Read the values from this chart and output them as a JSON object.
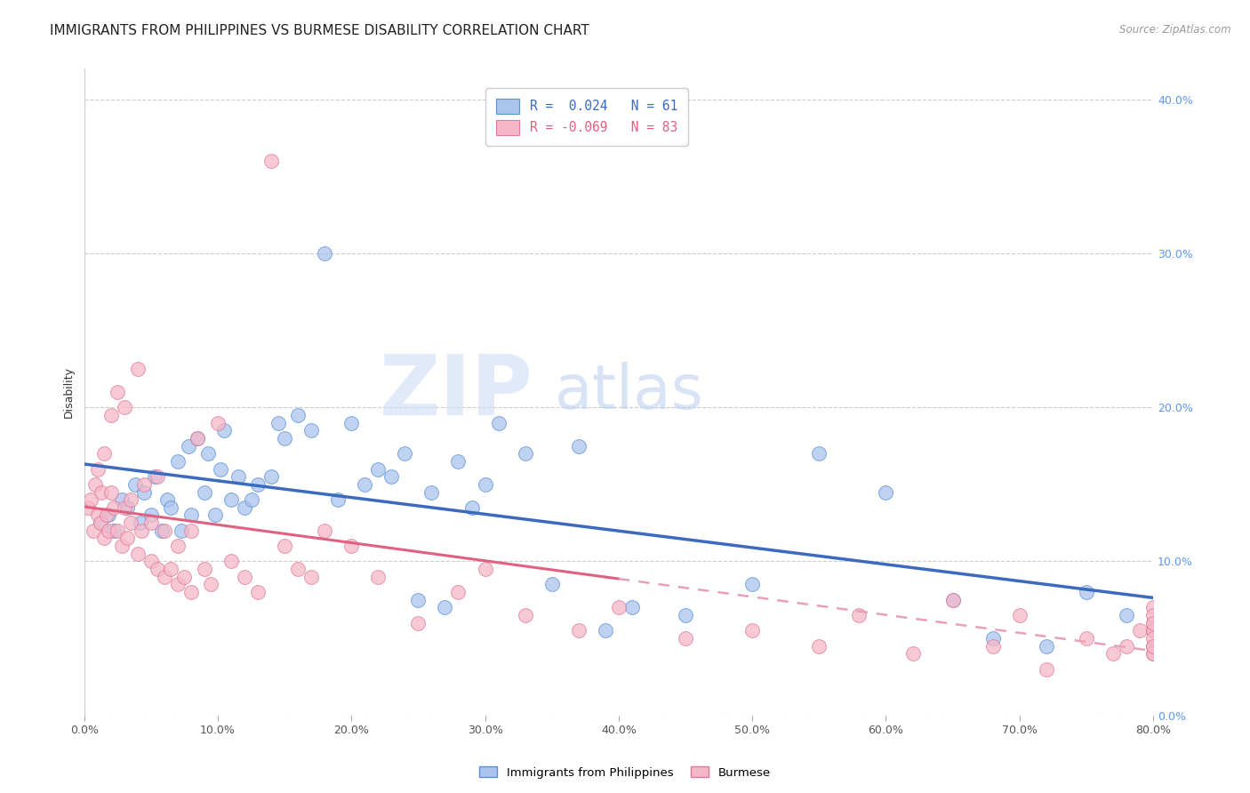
{
  "title": "IMMIGRANTS FROM PHILIPPINES VS BURMESE DISABILITY CORRELATION CHART",
  "source": "Source: ZipAtlas.com",
  "ylabel": "Disability",
  "watermark_zip": "ZIP",
  "watermark_atlas": "atlas",
  "xlim": [
    0.0,
    80.0
  ],
  "ylim": [
    0.0,
    42.0
  ],
  "yticks": [
    0.0,
    10.0,
    20.0,
    30.0,
    40.0
  ],
  "xticks": [
    0.0,
    10.0,
    20.0,
    30.0,
    40.0,
    50.0,
    60.0,
    70.0,
    80.0
  ],
  "legend1_label": "Immigrants from Philippines",
  "legend2_label": "Burmese",
  "r1": 0.024,
  "n1": 61,
  "r2": -0.069,
  "n2": 83,
  "blue_fill": "#aac4ed",
  "blue_edge": "#5b8fd4",
  "pink_fill": "#f5b8c8",
  "pink_edge": "#e07898",
  "blue_line_color": "#3a6bbf",
  "pink_line_color": "#e06080",
  "pink_dash_color": "#e8a0b8",
  "title_fontsize": 11,
  "axis_label_fontsize": 9,
  "tick_fontsize": 9,
  "blue_scatter": {
    "x": [
      1.2,
      1.8,
      2.2,
      2.8,
      3.2,
      3.8,
      4.2,
      4.5,
      5.0,
      5.3,
      5.8,
      6.2,
      6.5,
      7.0,
      7.3,
      7.8,
      8.0,
      8.5,
      9.0,
      9.3,
      9.8,
      10.2,
      10.5,
      11.0,
      11.5,
      12.0,
      12.5,
      13.0,
      14.0,
      14.5,
      15.0,
      16.0,
      17.0,
      18.0,
      19.0,
      20.0,
      21.0,
      22.0,
      23.0,
      24.0,
      25.0,
      26.0,
      27.0,
      28.0,
      29.0,
      30.0,
      31.0,
      33.0,
      35.0,
      37.0,
      39.0,
      41.0,
      45.0,
      50.0,
      55.0,
      60.0,
      65.0,
      68.0,
      72.0,
      75.0,
      78.0
    ],
    "y": [
      12.5,
      13.0,
      12.0,
      14.0,
      13.5,
      15.0,
      12.5,
      14.5,
      13.0,
      15.5,
      12.0,
      14.0,
      13.5,
      16.5,
      12.0,
      17.5,
      13.0,
      18.0,
      14.5,
      17.0,
      13.0,
      16.0,
      18.5,
      14.0,
      15.5,
      13.5,
      14.0,
      15.0,
      15.5,
      19.0,
      18.0,
      19.5,
      18.5,
      30.0,
      14.0,
      19.0,
      15.0,
      16.0,
      15.5,
      17.0,
      7.5,
      14.5,
      7.0,
      16.5,
      13.5,
      15.0,
      19.0,
      17.0,
      8.5,
      17.5,
      5.5,
      7.0,
      6.5,
      8.5,
      17.0,
      14.5,
      7.5,
      5.0,
      4.5,
      8.0,
      6.5
    ]
  },
  "pink_scatter": {
    "x": [
      0.3,
      0.5,
      0.7,
      0.8,
      1.0,
      1.0,
      1.2,
      1.3,
      1.5,
      1.5,
      1.7,
      1.8,
      2.0,
      2.0,
      2.2,
      2.5,
      2.5,
      2.8,
      3.0,
      3.0,
      3.2,
      3.5,
      3.5,
      4.0,
      4.0,
      4.3,
      4.5,
      5.0,
      5.0,
      5.5,
      5.5,
      6.0,
      6.0,
      6.5,
      7.0,
      7.0,
      7.5,
      8.0,
      8.0,
      8.5,
      9.0,
      9.5,
      10.0,
      11.0,
      12.0,
      13.0,
      14.0,
      15.0,
      16.0,
      17.0,
      18.0,
      20.0,
      22.0,
      25.0,
      28.0,
      30.0,
      33.0,
      37.0,
      40.0,
      45.0,
      50.0,
      55.0,
      58.0,
      62.0,
      65.0,
      68.0,
      70.0,
      72.0,
      75.0,
      77.0,
      78.0,
      79.0,
      80.0,
      80.0,
      80.0,
      80.0,
      80.0,
      80.0,
      80.0,
      80.0,
      80.0,
      80.0,
      80.0
    ],
    "y": [
      13.5,
      14.0,
      12.0,
      15.0,
      13.0,
      16.0,
      12.5,
      14.5,
      11.5,
      17.0,
      13.0,
      12.0,
      14.5,
      19.5,
      13.5,
      12.0,
      21.0,
      11.0,
      13.5,
      20.0,
      11.5,
      12.5,
      14.0,
      10.5,
      22.5,
      12.0,
      15.0,
      10.0,
      12.5,
      9.5,
      15.5,
      9.0,
      12.0,
      9.5,
      8.5,
      11.0,
      9.0,
      8.0,
      12.0,
      18.0,
      9.5,
      8.5,
      19.0,
      10.0,
      9.0,
      8.0,
      36.0,
      11.0,
      9.5,
      9.0,
      12.0,
      11.0,
      9.0,
      6.0,
      8.0,
      9.5,
      6.5,
      5.5,
      7.0,
      5.0,
      5.5,
      4.5,
      6.5,
      4.0,
      7.5,
      4.5,
      6.5,
      3.0,
      5.0,
      4.0,
      4.5,
      5.5,
      6.0,
      4.0,
      5.5,
      7.0,
      6.5,
      4.5,
      5.5,
      6.0,
      4.0,
      5.0,
      4.5
    ]
  },
  "pink_solid_cutoff": 40.0
}
